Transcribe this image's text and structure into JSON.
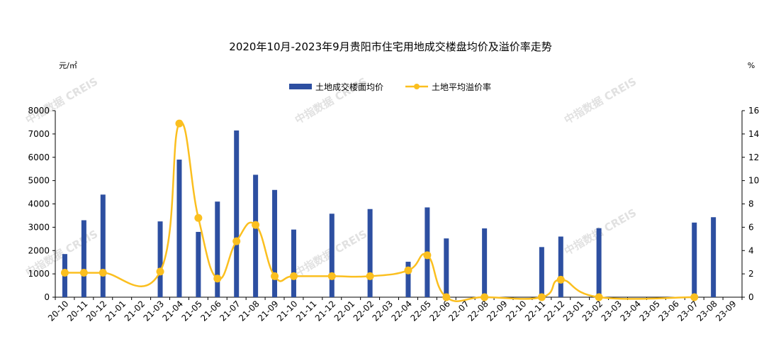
{
  "chart_data": {
    "type": "bar+line",
    "title": "2020年10月-2023年9月贵阳市住宅用地成交楼盘均价及溢价率走势",
    "y_left_label": "元/㎡",
    "y_right_label": "%",
    "watermark": "中指数据 CREIS",
    "categories": [
      "20-10",
      "20-11",
      "20-12",
      "21-01",
      "21-02",
      "21-03",
      "21-04",
      "21-05",
      "21-06",
      "21-07",
      "21-08",
      "21-09",
      "21-10",
      "21-11",
      "21-12",
      "22-01",
      "22-02",
      "22-03",
      "22-04",
      "22-05",
      "22-06",
      "22-07",
      "22-08",
      "22-09",
      "22-10",
      "22-11",
      "22-12",
      "23-01",
      "23-02",
      "23-03",
      "23-04",
      "23-05",
      "23-06",
      "23-07",
      "23-08",
      "23-09"
    ],
    "series": [
      {
        "name": "土地成交楼面均价",
        "type": "bar",
        "axis": "left",
        "color": "#2d4fa1",
        "values": [
          1850,
          3300,
          4400,
          null,
          null,
          3250,
          5900,
          2800,
          4100,
          7150,
          5250,
          4600,
          2900,
          null,
          3580,
          null,
          3780,
          null,
          1520,
          3850,
          2520,
          null,
          2950,
          null,
          null,
          2150,
          2600,
          null,
          2960,
          null,
          null,
          null,
          null,
          3200,
          3430,
          null
        ]
      },
      {
        "name": "土地平均溢价率",
        "type": "line",
        "axis": "right",
        "color": "#fbbf1f",
        "values": [
          2.1,
          2.1,
          2.1,
          null,
          null,
          2.2,
          14.9,
          6.8,
          1.6,
          4.8,
          6.2,
          1.8,
          1.8,
          null,
          1.8,
          null,
          1.8,
          null,
          2.3,
          3.6,
          0,
          null,
          0,
          null,
          null,
          0,
          1.5,
          null,
          0,
          null,
          null,
          null,
          null,
          0,
          null,
          null
        ]
      }
    ],
    "y_left": {
      "min": 0,
      "max": 8000,
      "step": 1000,
      "ticks": [
        "0",
        "1000",
        "2000",
        "3000",
        "4000",
        "5000",
        "6000",
        "7000",
        "8000"
      ]
    },
    "y_right": {
      "min": 0,
      "max": 16,
      "step": 2,
      "ticks": [
        "0",
        "2",
        "4",
        "6",
        "8",
        "10",
        "12",
        "14",
        "16"
      ]
    },
    "legend_position": "top-center",
    "grid": false
  }
}
